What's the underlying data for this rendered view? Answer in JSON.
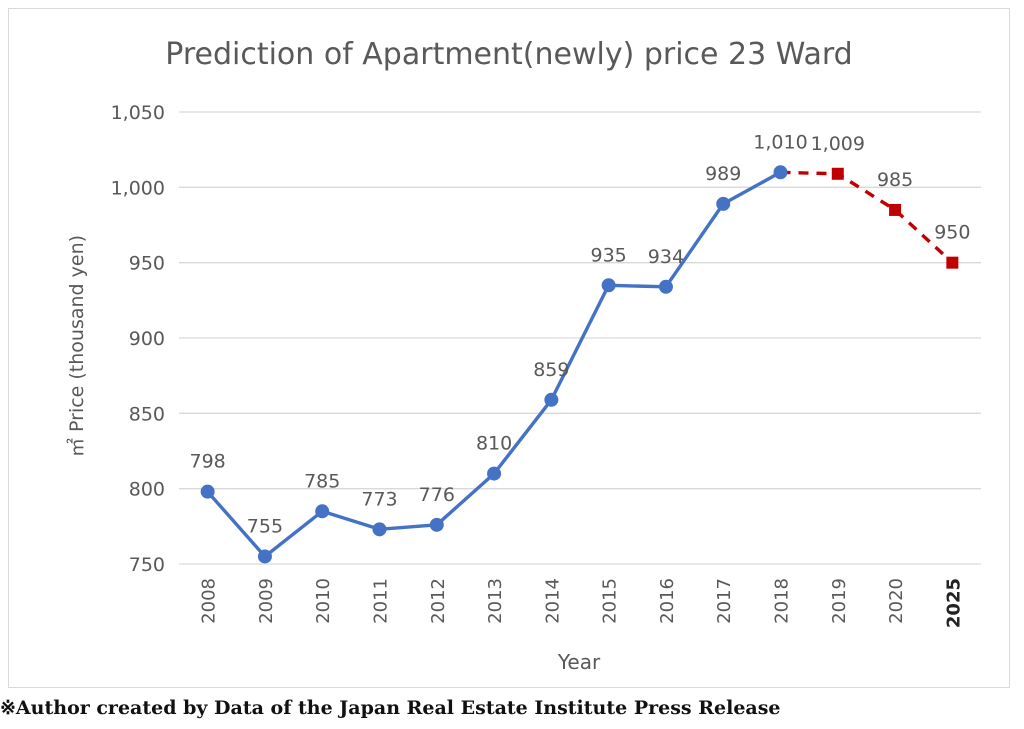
{
  "chart_data": {
    "type": "line",
    "title": "Prediction of Apartment(newly) price 23 Ward",
    "xlabel": "Year",
    "ylabel": "㎡ Price (thousand yen)",
    "ylim": [
      750,
      1050
    ],
    "yticks": [
      750,
      800,
      850,
      900,
      950,
      1000,
      1050
    ],
    "ytick_labels": [
      "750",
      "800",
      "850",
      "900",
      "950",
      "1,000",
      "1,050"
    ],
    "categories": [
      "2008",
      "2009",
      "2010",
      "2011",
      "2012",
      "2013",
      "2014",
      "2015",
      "2016",
      "2017",
      "2018",
      "2019",
      "2020",
      "2025"
    ],
    "grid": "horizontal",
    "series": [
      {
        "style": "solid",
        "color": "#4472c4",
        "values": [
          798,
          755,
          785,
          773,
          776,
          810,
          859,
          935,
          934,
          989,
          1010,
          null,
          null,
          null
        ],
        "labels": [
          "798",
          "755",
          "785",
          "773",
          "776",
          "810",
          "859",
          "935",
          "934",
          "989",
          "1,010",
          null,
          null,
          null
        ]
      },
      {
        "style": "dashed",
        "color": "#c00000",
        "values": [
          null,
          null,
          null,
          null,
          null,
          null,
          null,
          null,
          null,
          null,
          1010,
          1009,
          985,
          950
        ],
        "labels": [
          null,
          null,
          null,
          null,
          null,
          null,
          null,
          null,
          null,
          null,
          null,
          "1,009",
          "985",
          "950"
        ]
      }
    ]
  },
  "footnote": "※Author created by Data of the Japan Real Estate Institute Press Release"
}
